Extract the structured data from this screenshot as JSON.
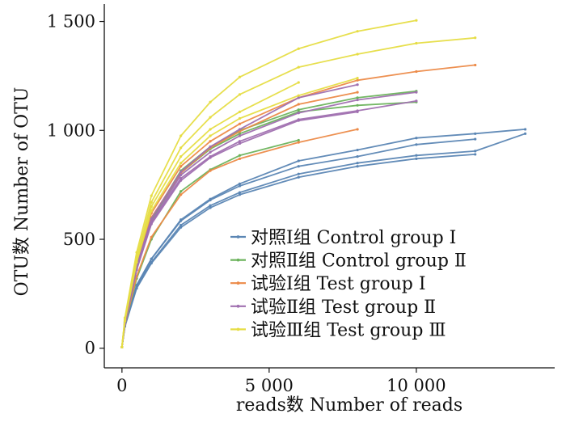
{
  "chart_data": {
    "type": "line",
    "xlabel": "reads数  Number of reads",
    "ylabel": "OTU数  Number of OTU",
    "xlim": [
      -600,
      14700
    ],
    "ylim": [
      -90,
      1580
    ],
    "x_ticks": [
      0,
      5000,
      10000
    ],
    "x_tick_labels": [
      "0",
      "5 000",
      "10 000"
    ],
    "y_ticks": [
      0,
      500,
      1000,
      1500
    ],
    "y_tick_labels": [
      "0",
      "500",
      "1 000",
      "1 500"
    ],
    "legend_position": "bottom-right",
    "groups": [
      {
        "name": "对照Ⅰ组 Control group Ⅰ",
        "color": "#5b86b4"
      },
      {
        "name": "对照Ⅱ组 Control group Ⅱ",
        "color": "#6cb35c"
      },
      {
        "name": "试验Ⅰ组 Test group Ⅰ",
        "color": "#ec8a48"
      },
      {
        "name": "试验Ⅱ组 Test group Ⅱ",
        "color": "#a070b0"
      },
      {
        "name": "试验Ⅲ组 Test group Ⅲ",
        "color": "#e6dd44"
      }
    ],
    "series": [
      {
        "group": 0,
        "x": [
          0,
          100,
          500,
          1000,
          2000,
          3000,
          4000,
          6000,
          8000,
          10000,
          12000,
          13700
        ],
        "y": [
          5,
          110,
          290,
          410,
          590,
          685,
          755,
          860,
          910,
          965,
          985,
          1005
        ]
      },
      {
        "group": 0,
        "x": [
          0,
          100,
          500,
          1000,
          2000,
          3000,
          4000,
          6000,
          8000,
          10000,
          12000,
          13700
        ],
        "y": [
          5,
          105,
          280,
          395,
          565,
          655,
          715,
          800,
          850,
          885,
          905,
          985
        ]
      },
      {
        "group": 0,
        "x": [
          0,
          100,
          500,
          1000,
          2000,
          3000,
          4000,
          6000,
          8000,
          10000,
          12000
        ],
        "y": [
          5,
          105,
          285,
          410,
          585,
          680,
          745,
          835,
          880,
          935,
          960
        ]
      },
      {
        "group": 0,
        "x": [
          0,
          100,
          500,
          1000,
          2000,
          3000,
          4000,
          6000,
          8000,
          10000,
          12000
        ],
        "y": [
          5,
          100,
          275,
          390,
          555,
          645,
          705,
          785,
          835,
          870,
          890
        ]
      },
      {
        "group": 1,
        "x": [
          0,
          100,
          500,
          1000,
          2000,
          3000,
          4000,
          6000
        ],
        "y": [
          5,
          110,
          320,
          500,
          720,
          820,
          885,
          955
        ]
      },
      {
        "group": 1,
        "x": [
          0,
          100,
          500,
          1000,
          2000,
          3000,
          4000,
          6000,
          8000,
          10000
        ],
        "y": [
          5,
          120,
          370,
          590,
          815,
          925,
          1000,
          1095,
          1150,
          1180
        ]
      },
      {
        "group": 1,
        "x": [
          0,
          100,
          500,
          1000,
          2000,
          3000,
          4000,
          6000,
          8000,
          10000
        ],
        "y": [
          5,
          115,
          365,
          585,
          805,
          915,
          985,
          1085,
          1115,
          1130
        ]
      },
      {
        "group": 2,
        "x": [
          0,
          100,
          500,
          1000,
          2000,
          3000,
          4000,
          6000,
          8000
        ],
        "y": [
          5,
          110,
          330,
          510,
          705,
          815,
          870,
          945,
          1005
        ]
      },
      {
        "group": 2,
        "x": [
          0,
          100,
          500,
          1000,
          2000,
          3000,
          4000,
          6000,
          8000,
          10000,
          12000
        ],
        "y": [
          5,
          125,
          390,
          620,
          835,
          950,
          1030,
          1150,
          1230,
          1270,
          1300
        ]
      },
      {
        "group": 2,
        "x": [
          0,
          100,
          500,
          1000,
          2000,
          3000,
          4000,
          6000,
          8000
        ],
        "y": [
          5,
          120,
          380,
          600,
          805,
          920,
          995,
          1120,
          1175
        ]
      },
      {
        "group": 3,
        "x": [
          0,
          100,
          500,
          1000,
          2000,
          3000,
          4000,
          6000,
          8000
        ],
        "y": [
          5,
          120,
          375,
          595,
          810,
          925,
          1005,
          1150,
          1210
        ]
      },
      {
        "group": 3,
        "x": [
          0,
          100,
          500,
          1000,
          2000,
          3000,
          4000,
          6000,
          8000,
          10000
        ],
        "y": [
          5,
          115,
          365,
          575,
          780,
          880,
          950,
          1050,
          1090,
          1135
        ]
      },
      {
        "group": 3,
        "x": [
          0,
          100,
          500,
          1000,
          2000,
          3000,
          4000,
          6000,
          8000,
          10000
        ],
        "y": [
          5,
          115,
          370,
          580,
          795,
          900,
          975,
          1080,
          1140,
          1175
        ]
      },
      {
        "group": 3,
        "x": [
          0,
          100,
          500,
          1000,
          2000,
          3000,
          4000,
          6000,
          8000
        ],
        "y": [
          5,
          110,
          360,
          570,
          770,
          875,
          940,
          1045,
          1085
        ]
      },
      {
        "group": 4,
        "x": [
          0,
          100,
          500,
          1000,
          2000,
          3000,
          4000,
          6000,
          8000,
          10000
        ],
        "y": [
          5,
          140,
          440,
          700,
          975,
          1130,
          1245,
          1375,
          1455,
          1505
        ]
      },
      {
        "group": 4,
        "x": [
          0,
          100,
          500,
          1000,
          2000,
          3000,
          4000,
          6000,
          8000,
          10000,
          12000
        ],
        "y": [
          5,
          135,
          420,
          670,
          920,
          1060,
          1165,
          1290,
          1350,
          1400,
          1425
        ]
      },
      {
        "group": 4,
        "x": [
          0,
          100,
          500,
          1000,
          2000,
          3000,
          4000,
          6000
        ],
        "y": [
          5,
          130,
          405,
          650,
          880,
          1005,
          1085,
          1220
        ]
      },
      {
        "group": 4,
        "x": [
          0,
          100,
          500,
          1000,
          2000,
          3000,
          4000,
          6000,
          8000
        ],
        "y": [
          5,
          125,
          395,
          630,
          850,
          975,
          1055,
          1160,
          1240
        ]
      }
    ]
  }
}
